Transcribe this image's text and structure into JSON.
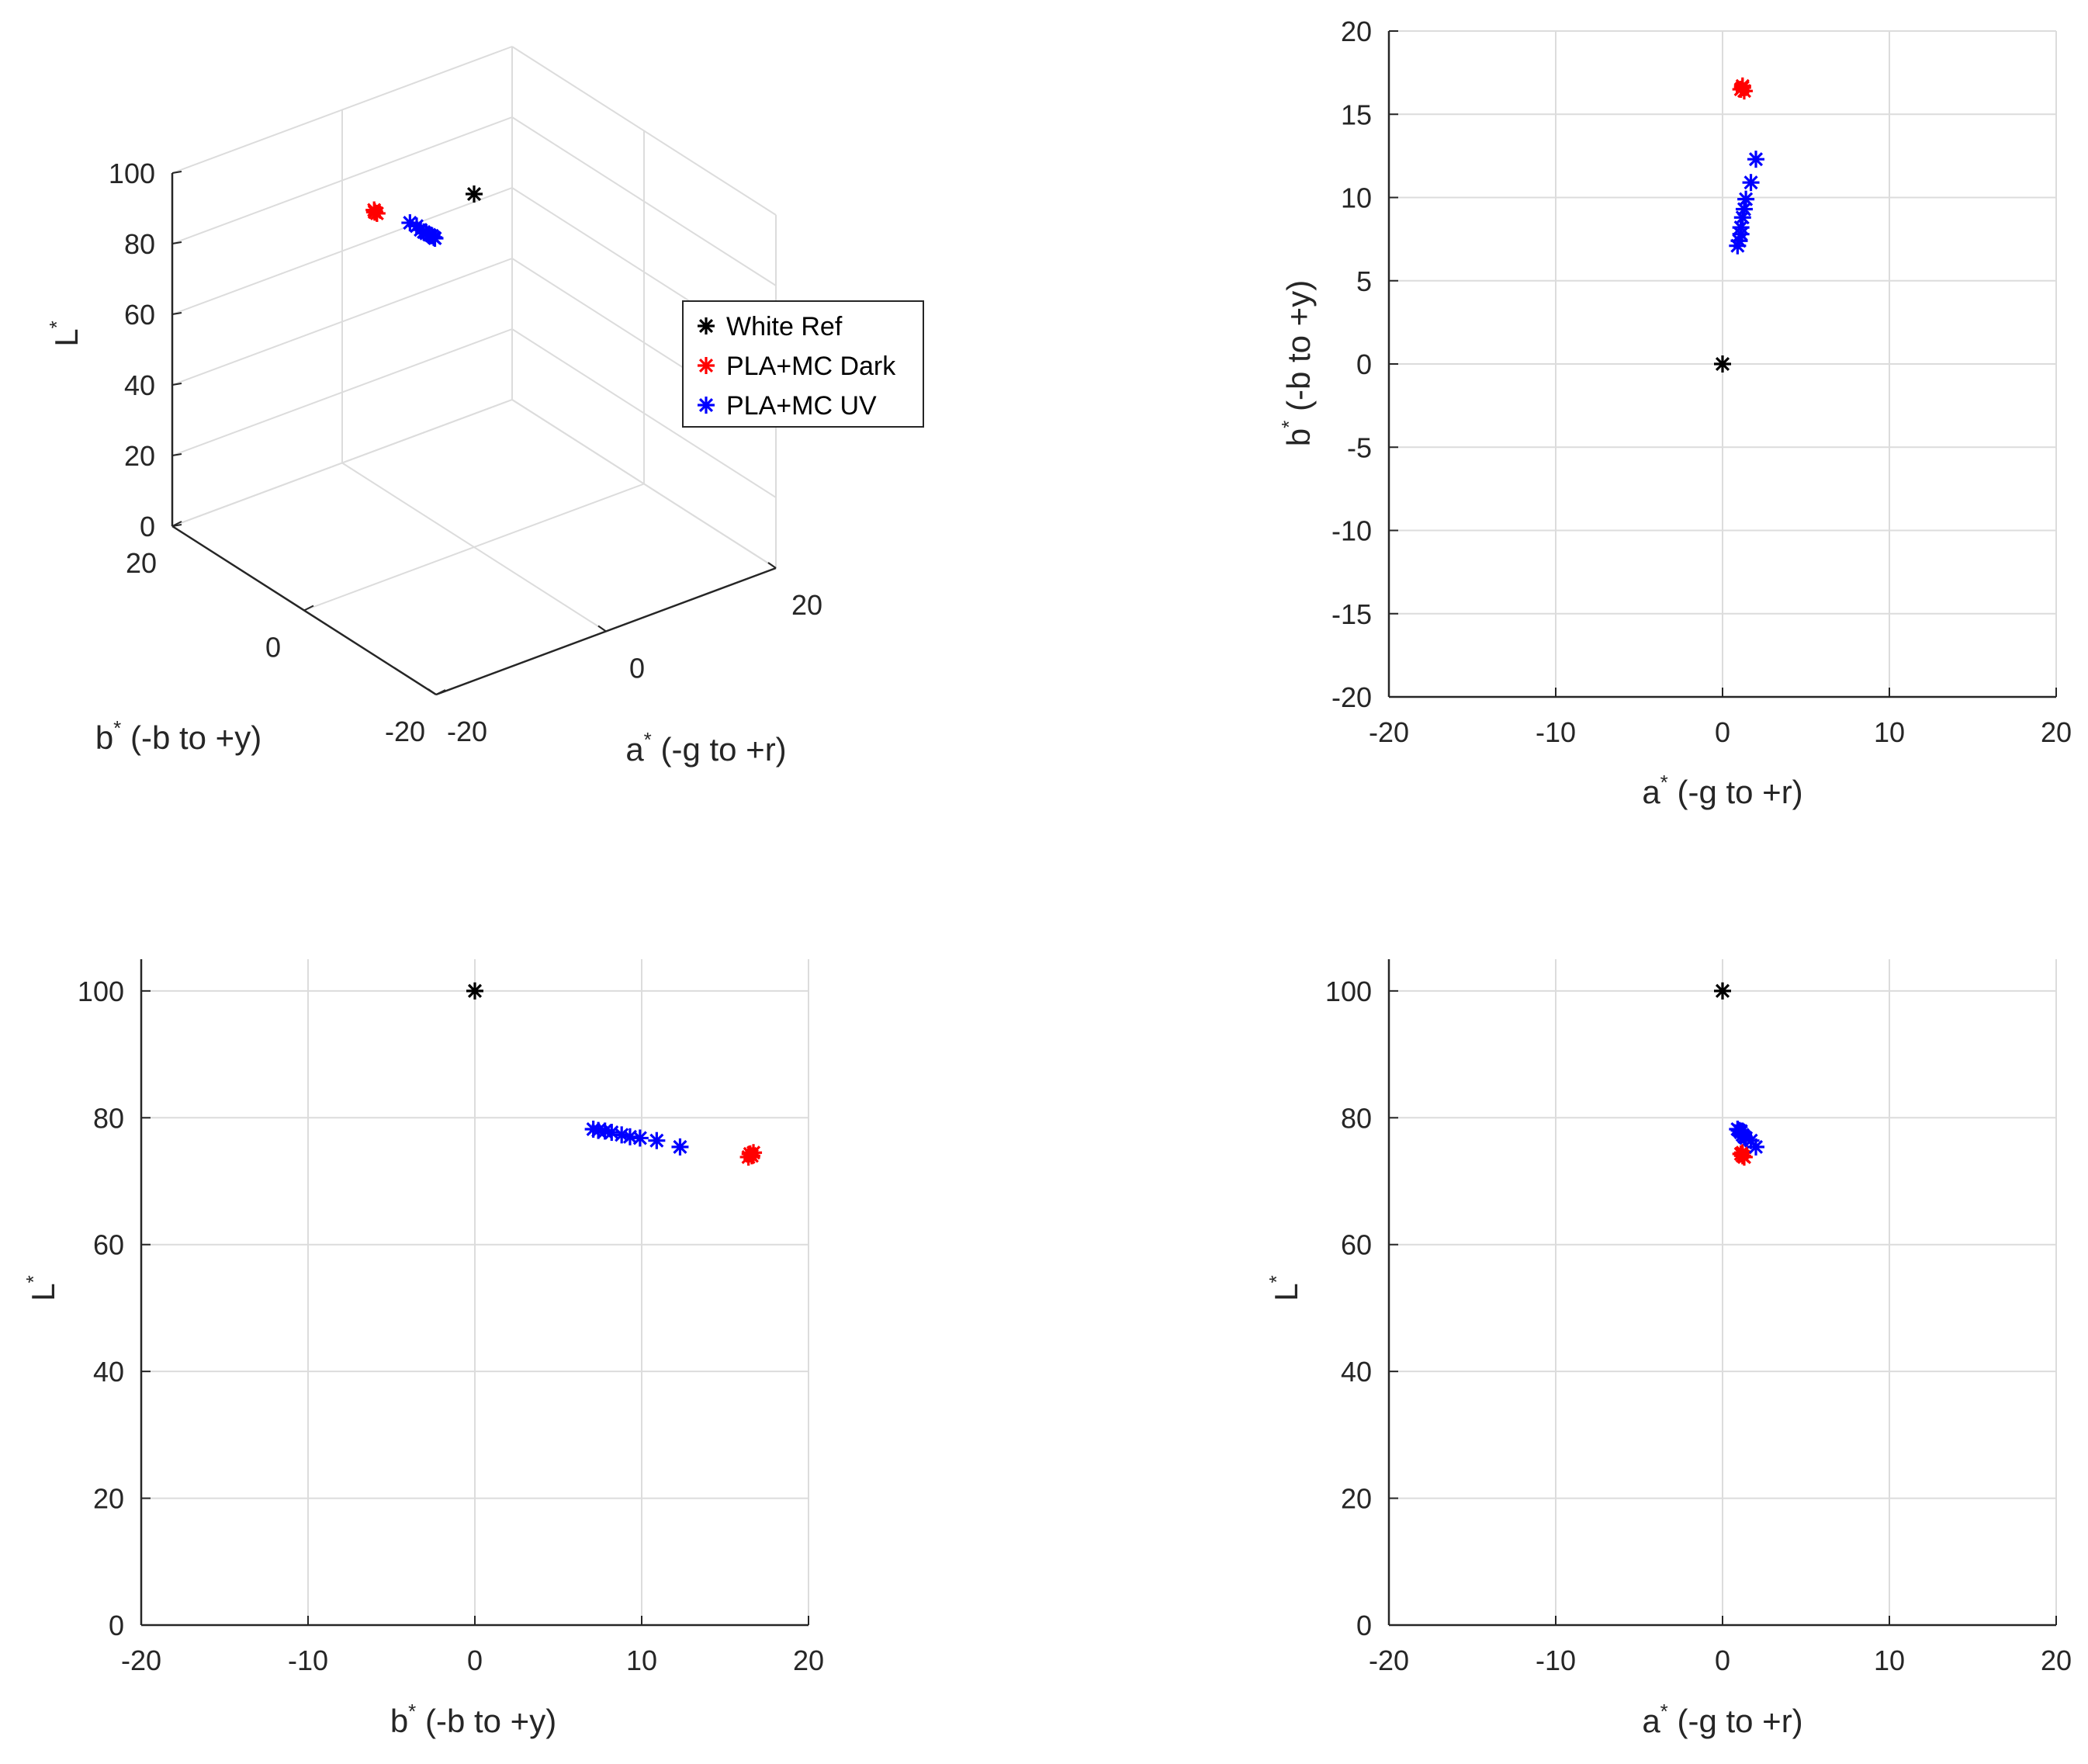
{
  "series": [
    {
      "key": "white",
      "name": "White Ref",
      "color": "#000000"
    },
    {
      "key": "dark",
      "name": "PLA+MC Dark",
      "color": "#ff0000"
    },
    {
      "key": "uv",
      "name": "PLA+MC UV",
      "color": "#0000ff"
    }
  ],
  "points": {
    "white": [
      {
        "a": 0,
        "b": 0,
        "L": 100
      }
    ],
    "dark": [
      {
        "a": 1.1,
        "b": 16.5,
        "L": 74.3
      },
      {
        "a": 1.2,
        "b": 16.6,
        "L": 74.0
      },
      {
        "a": 1.3,
        "b": 16.4,
        "L": 73.8
      },
      {
        "a": 1.2,
        "b": 16.7,
        "L": 74.5
      }
    ],
    "uv": [
      {
        "a": 0.9,
        "b": 7.1,
        "L": 78.2
      },
      {
        "a": 1.0,
        "b": 7.4,
        "L": 78.0
      },
      {
        "a": 1.1,
        "b": 7.8,
        "L": 77.9
      },
      {
        "a": 1.1,
        "b": 8.2,
        "L": 77.7
      },
      {
        "a": 1.2,
        "b": 8.8,
        "L": 77.3
      },
      {
        "a": 1.3,
        "b": 9.3,
        "L": 77.0
      },
      {
        "a": 1.4,
        "b": 9.9,
        "L": 76.8
      },
      {
        "a": 1.7,
        "b": 10.9,
        "L": 76.4
      },
      {
        "a": 2.0,
        "b": 12.3,
        "L": 75.4
      }
    ]
  },
  "chart_data": [
    {
      "type": "scatter",
      "view": "3d",
      "xlabel": "a* (-g to +r)",
      "ylabel": "b* (-b to +y)",
      "zlabel": "L*",
      "xlim": [
        -20,
        20
      ],
      "ylim": [
        -20,
        20
      ],
      "zlim": [
        0,
        100
      ],
      "legend_position": "right",
      "x_ticks": [
        "-20",
        "0",
        "20"
      ],
      "y_ticks": [
        "-20",
        "0",
        "20"
      ],
      "z_ticks": [
        "0",
        "20",
        "40",
        "60",
        "80",
        "100"
      ]
    },
    {
      "type": "scatter",
      "view": "a-b",
      "xlabel": "a* (-g to +r)",
      "ylabel": "b* (-b to +y)",
      "xlim": [
        -20,
        20
      ],
      "ylim": [
        -20,
        20
      ],
      "x_ticks": [
        "-20",
        "-10",
        "0",
        "10",
        "20"
      ],
      "y_ticks": [
        "-20",
        "-15",
        "-10",
        "-5",
        "0",
        "5",
        "10",
        "15",
        "20"
      ]
    },
    {
      "type": "scatter",
      "view": "b-L",
      "xlabel": "b* (-b to +y)",
      "ylabel": "L*",
      "xlim": [
        -20,
        20
      ],
      "ylim": [
        0,
        105
      ],
      "x_ticks": [
        "-20",
        "-10",
        "0",
        "10",
        "20"
      ],
      "y_ticks": [
        "0",
        "20",
        "40",
        "60",
        "80",
        "100"
      ]
    },
    {
      "type": "scatter",
      "view": "a-L",
      "xlabel": "a* (-g to +r)",
      "ylabel": "L*",
      "xlim": [
        -20,
        20
      ],
      "ylim": [
        0,
        105
      ],
      "x_ticks": [
        "-20",
        "-10",
        "0",
        "10",
        "20"
      ],
      "y_ticks": [
        "0",
        "20",
        "40",
        "60",
        "80",
        "100"
      ]
    }
  ]
}
